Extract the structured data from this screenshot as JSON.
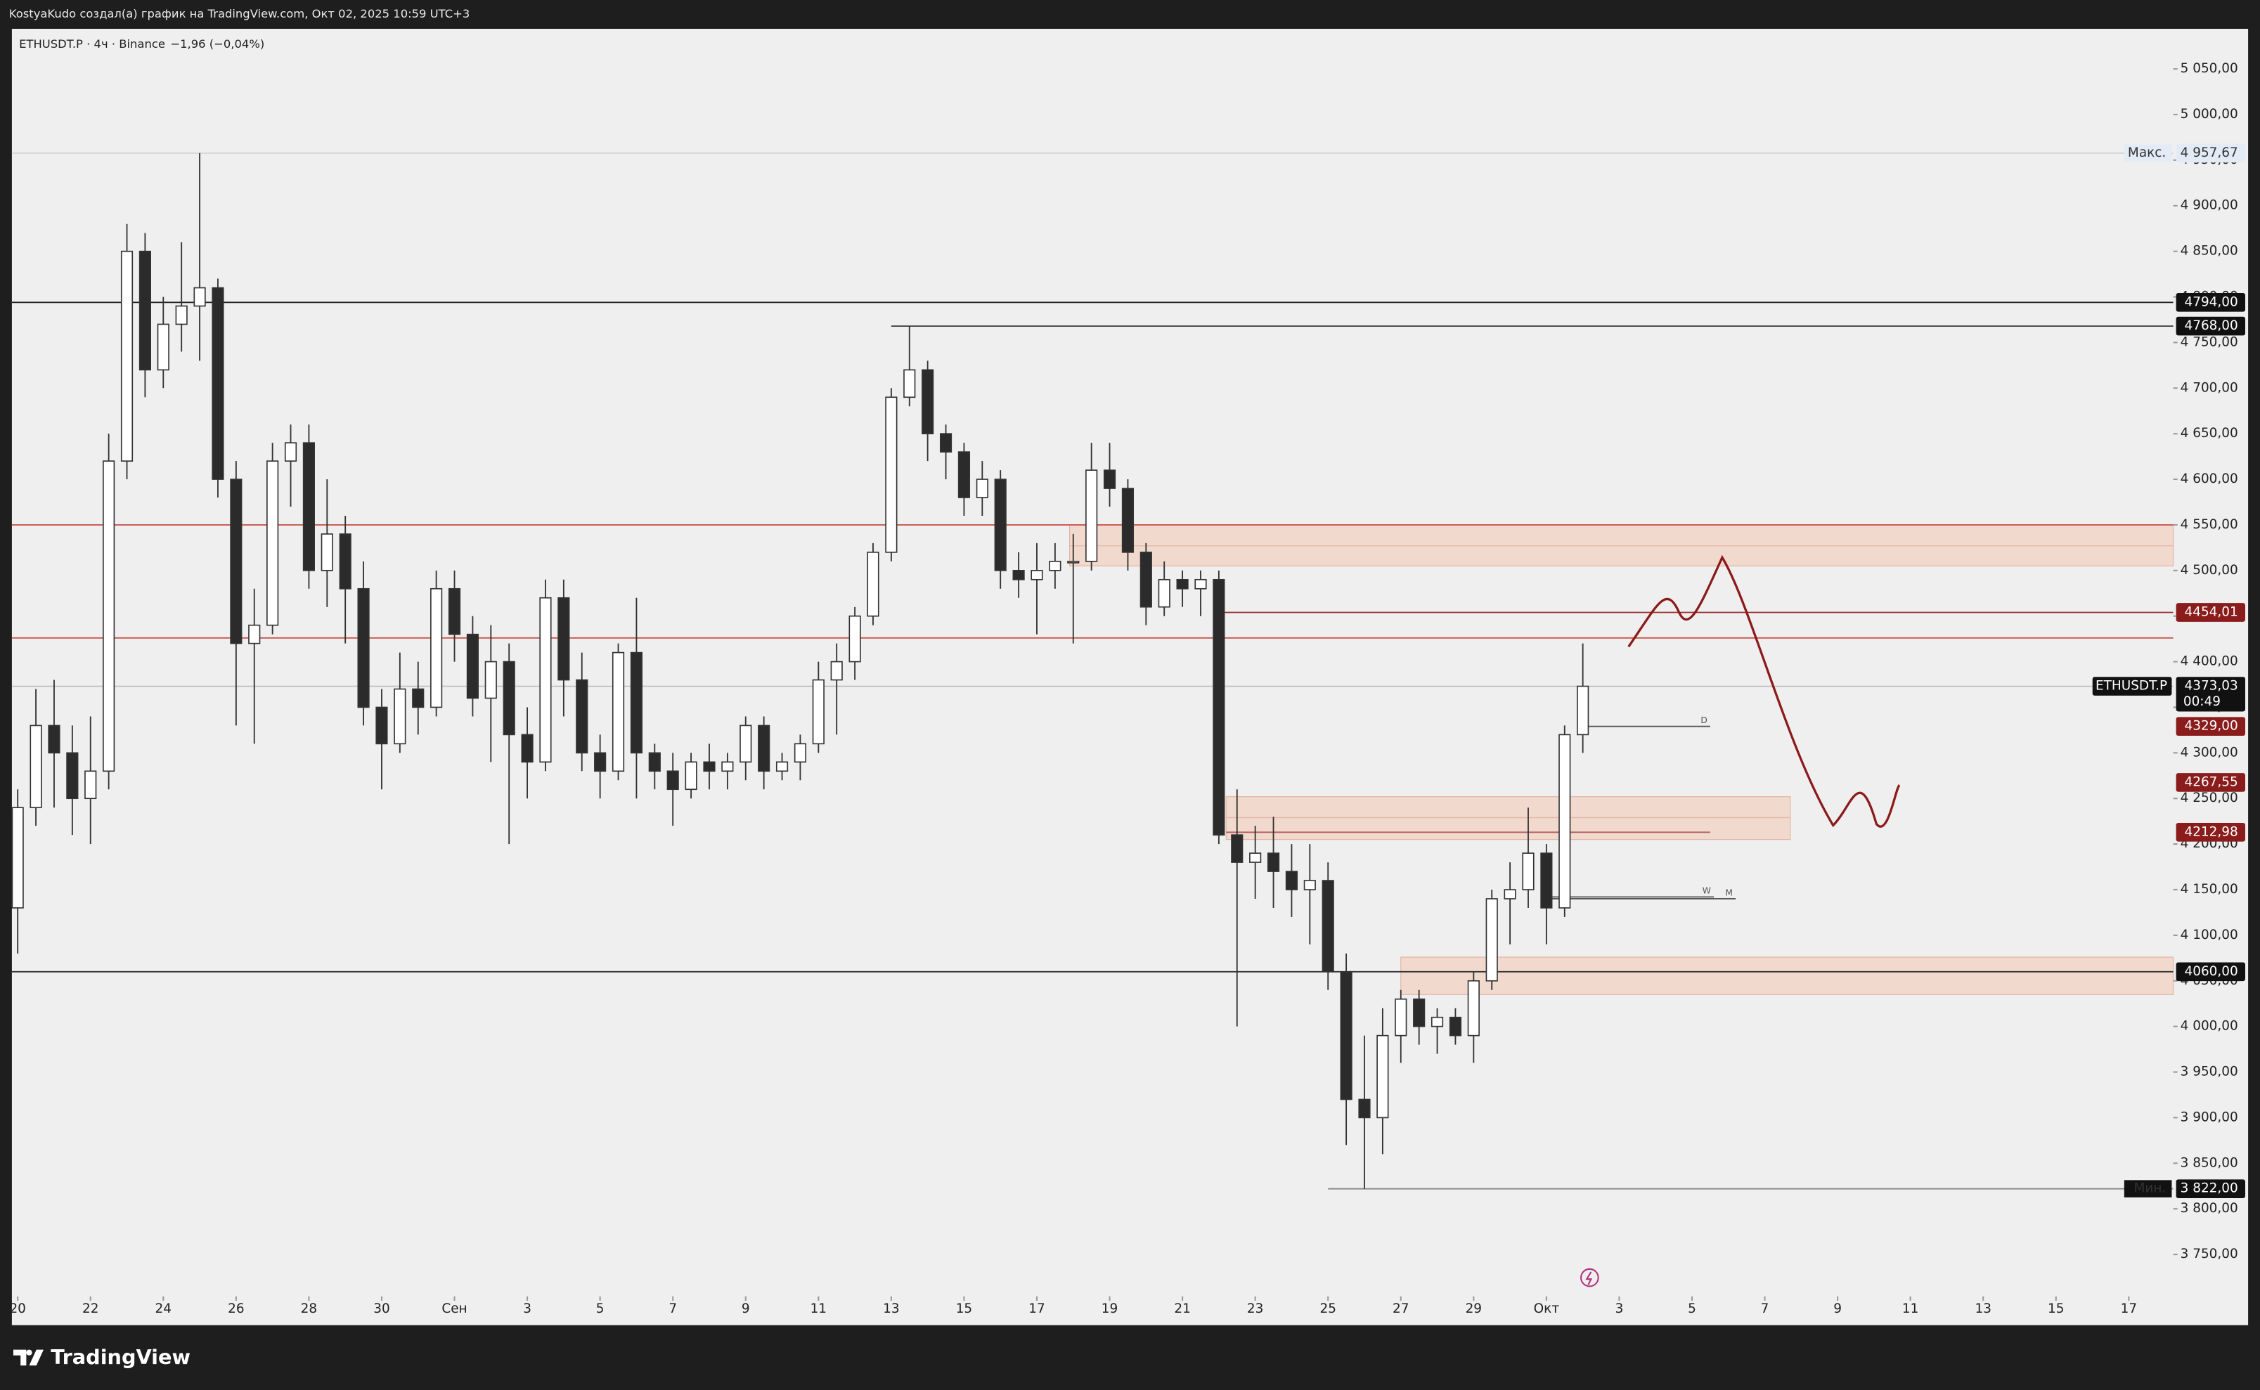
{
  "header": {
    "credit": "KostyaKudo создал(а) график на TradingView.com, Окт 02, 2025 10:59 UTC+3",
    "brand": "TradingView"
  },
  "chart_data": {
    "type": "candlestick",
    "title": "ETHUSDT.P · 4ч · Binance",
    "change": "−1,96 (−0,04%)",
    "up_color": "#ffffff",
    "down_color": "#2b2b2b",
    "wick_color": "#333333",
    "grid": false,
    "xlim": [
      -0.16,
      59.22
    ],
    "ylim": [
      3704,
      5094
    ],
    "xticks": [
      {
        "value": 0,
        "label": "20"
      },
      {
        "value": 2,
        "label": "22"
      },
      {
        "value": 4,
        "label": "24"
      },
      {
        "value": 6,
        "label": "26"
      },
      {
        "value": 8,
        "label": "28"
      },
      {
        "value": 10,
        "label": "30"
      },
      {
        "value": 12,
        "label": "Сен"
      },
      {
        "value": 14,
        "label": "3"
      },
      {
        "value": 16,
        "label": "5"
      },
      {
        "value": 18,
        "label": "7"
      },
      {
        "value": 20,
        "label": "9"
      },
      {
        "value": 22,
        "label": "11"
      },
      {
        "value": 24,
        "label": "13"
      },
      {
        "value": 26,
        "label": "15"
      },
      {
        "value": 28,
        "label": "17"
      },
      {
        "value": 30,
        "label": "19"
      },
      {
        "value": 32,
        "label": "21"
      },
      {
        "value": 34,
        "label": "23"
      },
      {
        "value": 36,
        "label": "25"
      },
      {
        "value": 38,
        "label": "27"
      },
      {
        "value": 40,
        "label": "29"
      },
      {
        "value": 42,
        "label": "Окт"
      },
      {
        "value": 44,
        "label": "3"
      },
      {
        "value": 46,
        "label": "5"
      },
      {
        "value": 48,
        "label": "7"
      },
      {
        "value": 50,
        "label": "9"
      },
      {
        "value": 52,
        "label": "11"
      },
      {
        "value": 54,
        "label": "13"
      },
      {
        "value": 56,
        "label": "15"
      },
      {
        "value": 58,
        "label": "17"
      }
    ],
    "yticks": [
      {
        "value": 3750,
        "label": "3 750,00"
      },
      {
        "value": 3800,
        "label": "3 800,00"
      },
      {
        "value": 3850,
        "label": "3 850,00"
      },
      {
        "value": 3900,
        "label": "3 900,00"
      },
      {
        "value": 3950,
        "label": "3 950,00"
      },
      {
        "value": 4000,
        "label": "4 000,00"
      },
      {
        "value": 4050,
        "label": "4 050,00"
      },
      {
        "value": 4100,
        "label": "4 100,00"
      },
      {
        "value": 4150,
        "label": "4 150,00"
      },
      {
        "value": 4200,
        "label": "4 200,00"
      },
      {
        "value": 4250,
        "label": "4 250,00"
      },
      {
        "value": 4300,
        "label": "4 300,00"
      },
      {
        "value": 4350,
        "label": "4 350,00"
      },
      {
        "value": 4400,
        "label": "4 400,00"
      },
      {
        "value": 4450,
        "label": "4 450,00"
      },
      {
        "value": 4500,
        "label": "4 500,00"
      },
      {
        "value": 4550,
        "label": "4 550,00"
      },
      {
        "value": 4600,
        "label": "4 600,00"
      },
      {
        "value": 4650,
        "label": "4 650,00"
      },
      {
        "value": 4700,
        "label": "4 700,00"
      },
      {
        "value": 4750,
        "label": "4 750,00"
      },
      {
        "value": 4800,
        "label": "4 800,00"
      },
      {
        "value": 4850,
        "label": "4 850,00"
      },
      {
        "value": 4900,
        "label": "4 900,00"
      },
      {
        "value": 4950,
        "label": "4 950,00"
      },
      {
        "value": 5000,
        "label": "5 000,00"
      },
      {
        "value": 5050,
        "label": "5 050,00"
      }
    ],
    "candles": {
      "x": [
        0,
        0.5,
        1,
        1.5,
        2,
        2.5,
        3,
        3.5,
        4,
        4.5,
        5,
        5.5,
        6,
        6.5,
        7,
        7.5,
        8,
        8.5,
        9,
        9.5,
        10,
        10.5,
        11,
        11.5,
        12,
        12.5,
        13,
        13.5,
        14,
        14.5,
        15,
        15.5,
        16,
        16.5,
        17,
        17.5,
        18,
        18.5,
        19,
        19.5,
        20,
        20.5,
        21,
        21.5,
        22,
        22.5,
        23,
        23.5,
        24,
        24.5,
        25,
        25.5,
        26,
        26.5,
        27,
        27.5,
        28,
        28.5,
        29,
        29.5,
        30,
        30.5,
        31,
        31.5,
        32,
        32.5,
        33,
        33.5,
        34,
        34.5,
        35,
        35.5,
        36,
        36.5,
        37,
        37.5,
        38,
        38.5,
        39,
        39.5,
        40,
        40.5,
        41,
        41.5,
        42,
        42.5,
        43
      ],
      "open": [
        4130,
        4240,
        4330,
        4300,
        4250,
        4280,
        4620,
        4850,
        4720,
        4770,
        4790,
        4810,
        4600,
        4420,
        4440,
        4620,
        4640,
        4500,
        4540,
        4480,
        4350,
        4310,
        4370,
        4350,
        4480,
        4430,
        4360,
        4400,
        4320,
        4290,
        4470,
        4380,
        4300,
        4280,
        4410,
        4300,
        4280,
        4260,
        4290,
        4280,
        4290,
        4330,
        4280,
        4290,
        4310,
        4380,
        4400,
        4450,
        4520,
        4690,
        4720,
        4650,
        4630,
        4580,
        4600,
        4500,
        4490,
        4500,
        4510,
        4510,
        4610,
        4590,
        4520,
        4460,
        4490,
        4480,
        4490,
        4210,
        4180,
        4190,
        4170,
        4150,
        4160,
        4060,
        3920,
        3900,
        3990,
        4030,
        4000,
        4010,
        3990,
        4050,
        4140,
        4150,
        4190,
        4130,
        4320
      ],
      "high": [
        4260,
        4370,
        4380,
        4330,
        4340,
        4650,
        4880,
        4870,
        4800,
        4860,
        4957.67,
        4820,
        4620,
        4480,
        4640,
        4660,
        4660,
        4600,
        4560,
        4510,
        4370,
        4410,
        4400,
        4500,
        4500,
        4450,
        4440,
        4420,
        4350,
        4490,
        4490,
        4410,
        4320,
        4420,
        4470,
        4310,
        4300,
        4300,
        4310,
        4300,
        4340,
        4340,
        4300,
        4320,
        4400,
        4420,
        4460,
        4530,
        4700,
        4768,
        4730,
        4660,
        4640,
        4620,
        4610,
        4520,
        4530,
        4530,
        4540,
        4640,
        4640,
        4600,
        4530,
        4510,
        4500,
        4500,
        4500,
        4260,
        4220,
        4230,
        4200,
        4200,
        4180,
        4080,
        3990,
        4020,
        4040,
        4040,
        4020,
        4020,
        4060,
        4150,
        4180,
        4240,
        4200,
        4330,
        4420
      ],
      "low": [
        4080,
        4220,
        4240,
        4210,
        4200,
        4260,
        4600,
        4690,
        4700,
        4740,
        4730,
        4580,
        4330,
        4310,
        4430,
        4570,
        4480,
        4460,
        4420,
        4330,
        4260,
        4300,
        4320,
        4340,
        4400,
        4340,
        4290,
        4200,
        4250,
        4280,
        4340,
        4280,
        4250,
        4270,
        4250,
        4260,
        4220,
        4250,
        4260,
        4260,
        4270,
        4260,
        4270,
        4270,
        4300,
        4320,
        4380,
        4440,
        4510,
        4680,
        4620,
        4600,
        4560,
        4560,
        4480,
        4470,
        4430,
        4480,
        4420,
        4500,
        4570,
        4500,
        4440,
        4450,
        4460,
        4450,
        4200,
        4000,
        4140,
        4130,
        4120,
        4090,
        4040,
        3870,
        3822,
        3860,
        3960,
        3980,
        3970,
        3980,
        3960,
        4040,
        4090,
        4130,
        4090,
        4120,
        4300
      ],
      "close": [
        4240,
        4330,
        4300,
        4250,
        4280,
        4620,
        4850,
        4720,
        4770,
        4790,
        4810,
        4600,
        4420,
        4440,
        4620,
        4640,
        4500,
        4540,
        4480,
        4350,
        4310,
        4370,
        4350,
        4480,
        4430,
        4360,
        4400,
        4320,
        4290,
        4470,
        4380,
        4300,
        4280,
        4410,
        4300,
        4280,
        4260,
        4290,
        4280,
        4290,
        4330,
        4280,
        4290,
        4310,
        4380,
        4400,
        4450,
        4520,
        4690,
        4720,
        4650,
        4630,
        4580,
        4600,
        4500,
        4490,
        4500,
        4510,
        4510,
        4610,
        4590,
        4520,
        4460,
        4490,
        4480,
        4490,
        4210,
        4180,
        4190,
        4170,
        4150,
        4160,
        4060,
        3920,
        3900,
        3990,
        4030,
        4000,
        4010,
        3990,
        4050,
        4140,
        4150,
        4190,
        4130,
        4320,
        4373.03
      ]
    },
    "zone_color": "#f1d9cd",
    "zone_border": "#e2b6a4",
    "zones": [
      {
        "low": 4505,
        "high": 4550,
        "mid": 4527,
        "x_start": 28.9
      },
      {
        "low": 4205,
        "high": 4252,
        "mid": 4229,
        "x_start": 33.2,
        "x_end": 48.7
      },
      {
        "low": 4035,
        "high": 4076,
        "x_start": 38.0
      }
    ],
    "levels": [
      {
        "value": 4957.67,
        "label": "4 957,67",
        "name": "Макс.",
        "color": "#d6d6d6",
        "box": "#e2ebf6",
        "text_color": "#333333"
      },
      {
        "value": 4794,
        "label": "4794,00",
        "color": "#222222",
        "box": "#111111",
        "text_color": "#ffffff"
      },
      {
        "value": 4768,
        "label": "4768,00",
        "color": "#444444",
        "box": "#111111",
        "text_color": "#ffffff",
        "x_start": 24
      },
      {
        "value": 4550,
        "color": "#c8564f"
      },
      {
        "value": 4454.01,
        "label": "4454,01",
        "color": "#9a3030",
        "box": "#8a1c1c",
        "text_color": "#ffffff",
        "x_start": 33
      },
      {
        "value": 4426,
        "color": "#c8564f"
      },
      {
        "value": 4329,
        "label": "4329,00",
        "tag": "D",
        "color": "#555555",
        "box": "#8a1c1c",
        "text_color": "#ffffff",
        "x_start": 43.1,
        "x_end": 46.5
      },
      {
        "value": 4267.55,
        "label": "4267,55",
        "box": "#8a1c1c",
        "text_color": "#ffffff"
      },
      {
        "value": 4212.98,
        "label": "4212,98",
        "color": "#b06060",
        "box": "#8a1c1c",
        "text_color": "#ffffff",
        "x_start": 33.2,
        "x_end": 46.5
      },
      {
        "value": 4142,
        "tag": "W",
        "color": "#555555",
        "x_start": 42.1,
        "x_end": 46.6
      },
      {
        "value": 4140,
        "tag": "M",
        "color": "#555555",
        "x_start": 42.1,
        "x_end": 47.2
      },
      {
        "value": 4060,
        "label": "4060,00",
        "color": "#333333",
        "box": "#111111",
        "text_color": "#ffffff"
      },
      {
        "value": 3822,
        "label": "3 822,00",
        "name": "Мин.",
        "color": "#888888",
        "box": "#111111",
        "text_color": "#ffffff",
        "x_start": 36
      }
    ],
    "last_price": {
      "name": "ETHUSDT.P",
      "value": 4373.03,
      "label": "4373,03",
      "countdown": "00:49",
      "color": "#bbbbbb",
      "box": "#111111"
    }
  }
}
